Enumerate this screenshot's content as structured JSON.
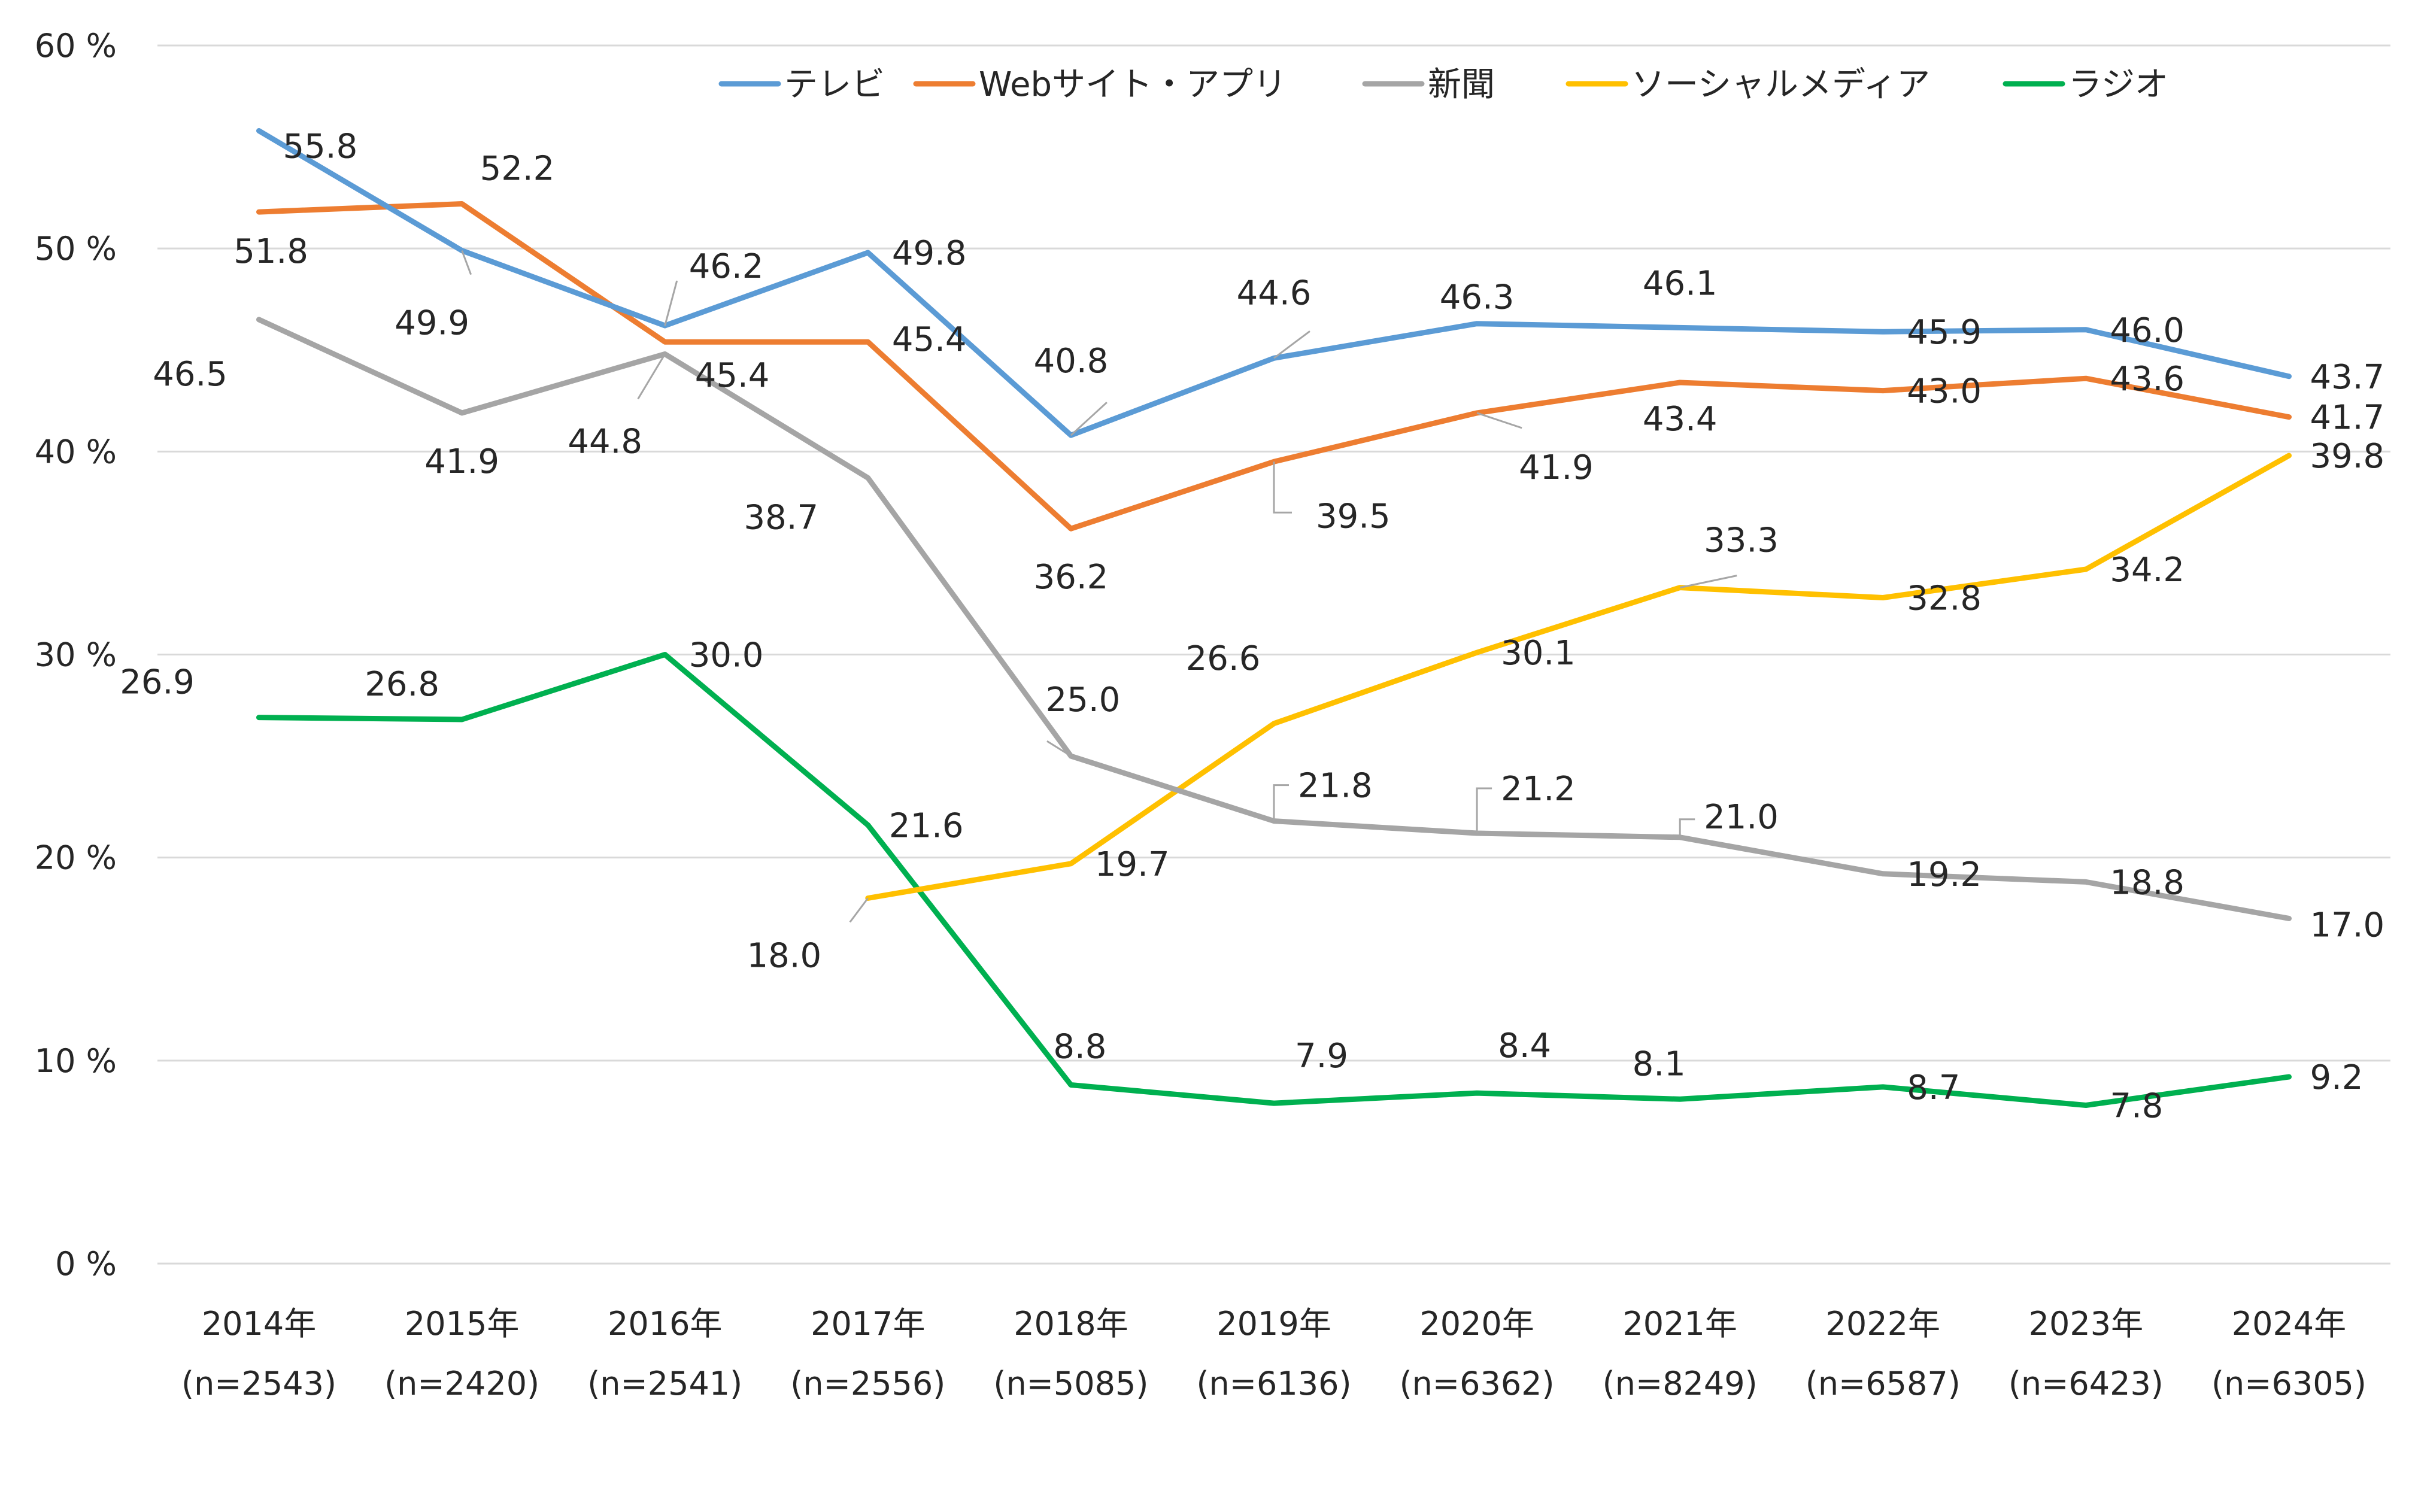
{
  "chart_data": {
    "type": "line",
    "categories": [
      {
        "year": "2014年",
        "n": "(n=2543)"
      },
      {
        "year": "2015年",
        "n": "(n=2420)"
      },
      {
        "year": "2016年",
        "n": "(n=2541)"
      },
      {
        "year": "2017年",
        "n": "(n=2556)"
      },
      {
        "year": "2018年",
        "n": "(n=5085)"
      },
      {
        "year": "2019年",
        "n": "(n=6136)"
      },
      {
        "year": "2020年",
        "n": "(n=6362)"
      },
      {
        "year": "2021年",
        "n": "(n=8249)"
      },
      {
        "year": "2022年",
        "n": "(n=6587)"
      },
      {
        "year": "2023年",
        "n": "(n=6423)"
      },
      {
        "year": "2024年",
        "n": "(n=6305)"
      }
    ],
    "ylim": [
      0,
      60
    ],
    "yticks": [
      "0 %",
      "10 %",
      "20 %",
      "30 %",
      "40 %",
      "50 %",
      "60 %"
    ],
    "grid": true,
    "legend_position": "top",
    "series": [
      {
        "name": "テレビ",
        "color": "#5B9BD5",
        "values": [
          55.8,
          49.9,
          46.2,
          49.8,
          40.8,
          44.6,
          46.3,
          46.1,
          45.9,
          46.0,
          43.7
        ],
        "labels": [
          "55.8",
          "49.9",
          "46.2",
          "49.8",
          "40.8",
          "44.6",
          "46.3",
          "46.1",
          "45.9",
          "46.0",
          "43.7"
        ]
      },
      {
        "name": "Webサイト・アプリ",
        "color": "#ED7D31",
        "values": [
          51.8,
          52.2,
          45.4,
          45.4,
          36.2,
          39.5,
          41.9,
          43.4,
          43.0,
          43.6,
          41.7
        ],
        "labels": [
          "51.8",
          "52.2",
          "45.4",
          "45.4",
          "36.2",
          "39.5",
          "41.9",
          "43.4",
          "43.0",
          "43.6",
          "41.7"
        ]
      },
      {
        "name": "新聞",
        "color": "#A5A5A5",
        "values": [
          46.5,
          41.9,
          44.8,
          38.7,
          25.0,
          21.8,
          21.2,
          21.0,
          19.2,
          18.8,
          17.0
        ],
        "labels": [
          "46.5",
          "41.9",
          "44.8",
          "38.7",
          "25.0",
          "21.8",
          "21.2",
          "21.0",
          "19.2",
          "18.8",
          "17.0"
        ]
      },
      {
        "name": "ソーシャルメディア",
        "color": "#FFC000",
        "values": [
          null,
          null,
          null,
          18.0,
          19.7,
          26.6,
          30.1,
          33.3,
          32.8,
          34.2,
          39.8
        ],
        "labels": [
          "",
          "",
          "",
          "18.0",
          "19.7",
          "26.6",
          "30.1",
          "33.3",
          "32.8",
          "34.2",
          "39.8"
        ]
      },
      {
        "name": "ラジオ",
        "color": "#00B050",
        "values": [
          26.9,
          26.8,
          30.0,
          21.6,
          8.8,
          7.9,
          8.4,
          8.1,
          8.7,
          7.8,
          9.2
        ],
        "labels": [
          "26.9",
          "26.8",
          "30.0",
          "21.6",
          "8.8",
          "7.9",
          "8.4",
          "8.1",
          "8.7",
          "7.8",
          "9.2"
        ]
      }
    ]
  }
}
